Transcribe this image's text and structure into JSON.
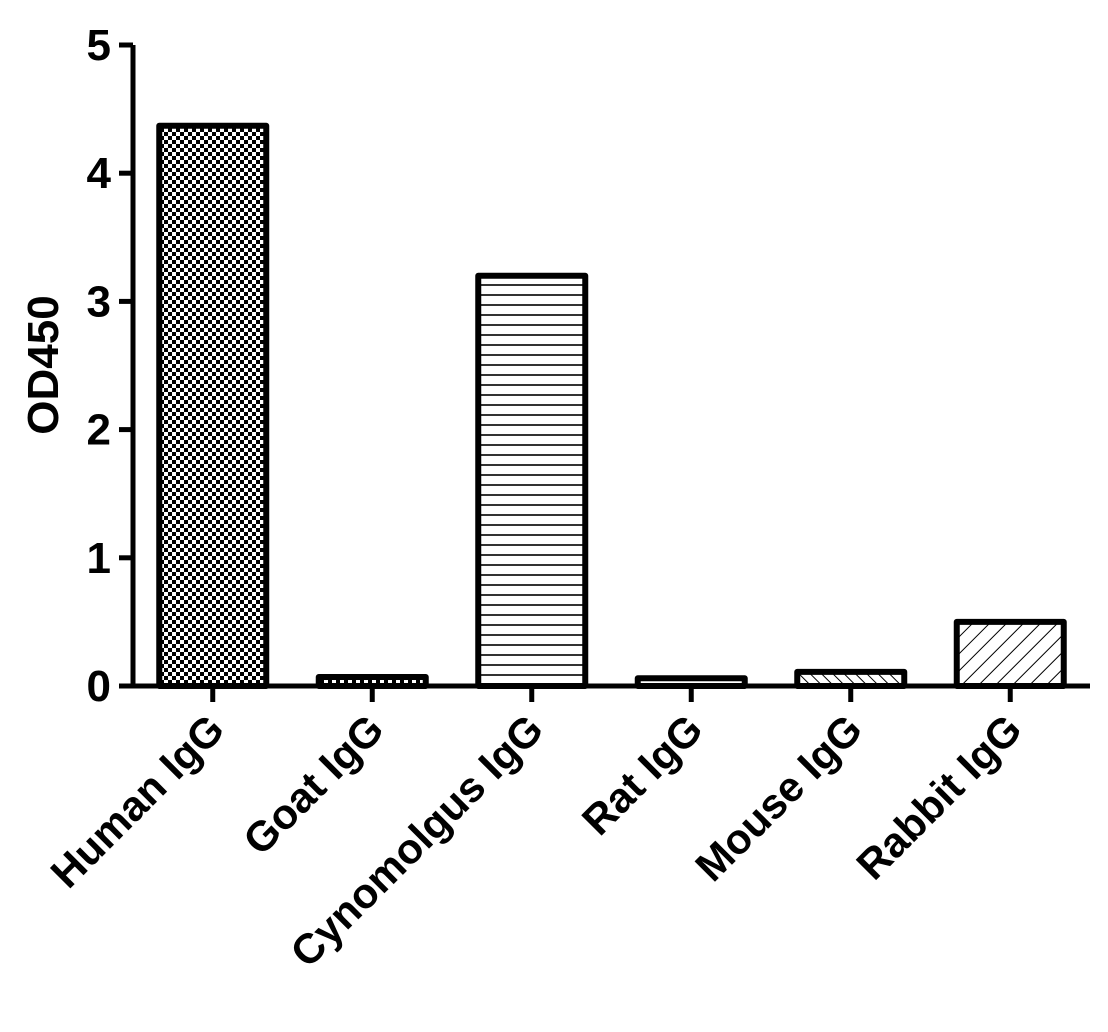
{
  "chart_data": {
    "type": "bar",
    "categories": [
      "Human IgG",
      "Goat IgG",
      "Cynomolgus IgG",
      "Rat IgG",
      "Mouse IgG",
      "Rabbit IgG"
    ],
    "values": [
      4.37,
      0.07,
      3.2,
      0.06,
      0.11,
      0.5
    ],
    "patterns": [
      "checker",
      "checker",
      "horizontal-lines",
      "horizontal-lines",
      "diagonal-lines-fine",
      "diagonal-lines"
    ],
    "ylabel": "OD450",
    "xlabel": "",
    "title": "",
    "ylim": [
      0,
      5
    ],
    "yticks": [
      "0",
      "1",
      "2",
      "3",
      "4",
      "5"
    ],
    "grid": false,
    "bar_fill_color": "#ffffff",
    "bar_stroke_color": "#000000"
  }
}
